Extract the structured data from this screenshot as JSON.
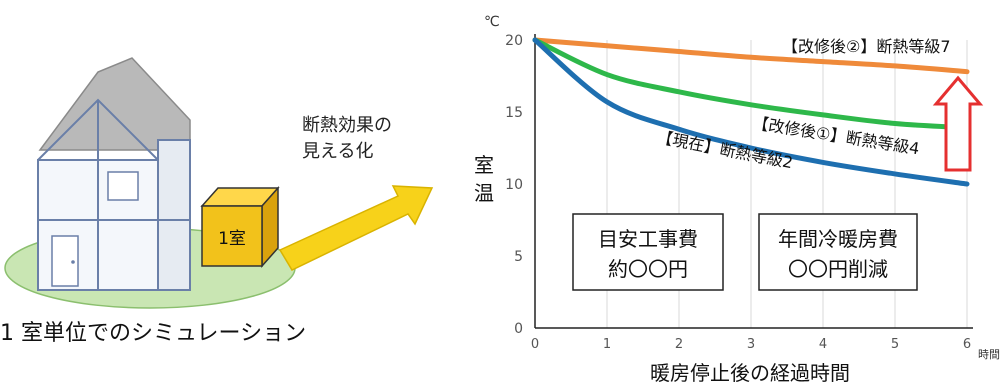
{
  "illustration": {
    "room_label": "1室",
    "callout_line1": "断熱効果の",
    "callout_line2": "見える化",
    "caption": "1 室単位でのシミュレーション",
    "colors": {
      "house_outline": "#6a7fa8",
      "roof": "#b0b0b0",
      "ground": "#bfe0a8",
      "room_box": "#f2c21b",
      "arrow": "#f7d21a"
    }
  },
  "chart_data": {
    "type": "line",
    "y_unit": "℃",
    "ylabel": "室温",
    "xlabel": "暖房停止後の経過時間",
    "x_unit": "時間",
    "xlim": [
      0,
      6
    ],
    "ylim": [
      0,
      20
    ],
    "x_ticks": [
      "0",
      "1",
      "2",
      "3",
      "4",
      "5",
      "6"
    ],
    "y_ticks": [
      "0",
      "5",
      "10",
      "15",
      "20"
    ],
    "grid": "vertical",
    "series": [
      {
        "name": "【改修後②】断熱等級7",
        "color": "#ef8a3a",
        "x": [
          0,
          1,
          2,
          3,
          4,
          5,
          6
        ],
        "y": [
          20,
          19.6,
          19.2,
          18.8,
          18.5,
          18.2,
          17.8
        ]
      },
      {
        "name": "【改修後①】断熱等級4",
        "color": "#2eb84a",
        "x": [
          0,
          1,
          2,
          3,
          4,
          5,
          6
        ],
        "y": [
          20,
          17.6,
          16.4,
          15.5,
          14.8,
          14.2,
          13.9
        ]
      },
      {
        "name": "【現在】断熱等級2",
        "color": "#1e6fb0",
        "x": [
          0,
          1,
          2,
          3,
          4,
          5,
          6
        ],
        "y": [
          20,
          15.7,
          13.8,
          12.5,
          11.5,
          10.7,
          10.0
        ]
      }
    ],
    "annotations": {
      "box1_line1": "目安工事費",
      "box1_line2": "約〇〇円",
      "box2_line1": "年間冷暖房費",
      "box2_line2": "〇〇円削減"
    },
    "arrow_color": "#e53030"
  }
}
